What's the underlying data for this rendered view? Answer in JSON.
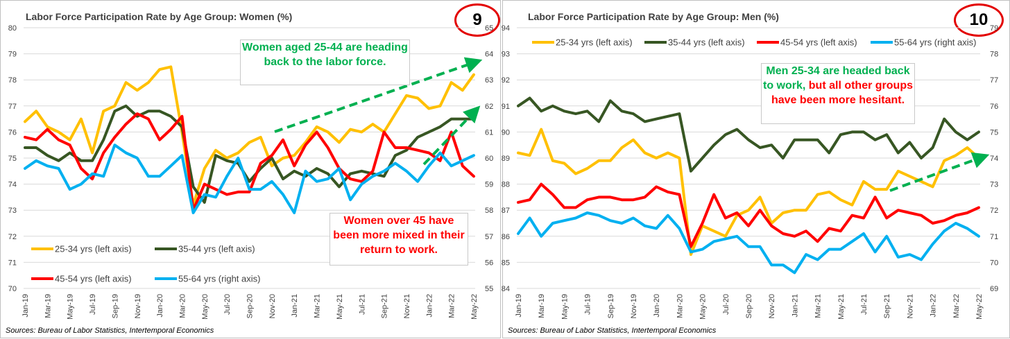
{
  "colors": {
    "yellow": "#ffc000",
    "darkgreen": "#375623",
    "red": "#ff0000",
    "blue": "#00b0f0",
    "green_text": "#00b050",
    "red_text": "#ff0000",
    "arrow": "#00b050"
  },
  "left": {
    "title": "Labor Force Participation Rate by Age Group: Women (%)",
    "badge": "9",
    "source": "Sources: Bureau of Labor Statistics, Intertemporal Economics",
    "annot_top": "Women aged 25-44 are heading back to the labor force.",
    "annot_bottom": "Women over 45 have been more mixed in their return to work."
  },
  "right": {
    "title": "Labor Force Participation Rate by Age Group: Men (%)",
    "badge": "10",
    "source": "Sources: Bureau of Labor Statistics, Intertemporal Economics",
    "annot_green": "Men 25-34 are headed back to work,",
    "annot_red": " but all other groups have been more hesitant."
  },
  "chart_data": [
    {
      "type": "line",
      "title": "Labor Force Participation Rate by Age Group: Women (%)",
      "x": [
        "Jan-19",
        "Feb-19",
        "Mar-19",
        "Apr-19",
        "May-19",
        "Jun-19",
        "Jul-19",
        "Aug-19",
        "Sep-19",
        "Oct-19",
        "Nov-19",
        "Dec-19",
        "Jan-20",
        "Feb-20",
        "Mar-20",
        "Apr-20",
        "May-20",
        "Jun-20",
        "Jul-20",
        "Aug-20",
        "Sep-20",
        "Oct-20",
        "Nov-20",
        "Dec-20",
        "Jan-21",
        "Feb-21",
        "Mar-21",
        "Apr-21",
        "May-21",
        "Jun-21",
        "Jul-21",
        "Aug-21",
        "Sep-21",
        "Oct-21",
        "Nov-21",
        "Dec-21",
        "Jan-22",
        "Feb-22",
        "Mar-22",
        "Apr-22",
        "May-22"
      ],
      "x_tick_labels": [
        "Jan-19",
        "Mar-19",
        "May-19",
        "Jul-19",
        "Sep-19",
        "Nov-19",
        "Jan-20",
        "Mar-20",
        "May-20",
        "Jul-20",
        "Sep-20",
        "Nov-20",
        "Jan-21",
        "Mar-21",
        "May-21",
        "Jul-21",
        "Sep-21",
        "Nov-21",
        "Jan-22",
        "Mar-22",
        "May-22"
      ],
      "ylim_left": [
        70,
        80
      ],
      "ylim_right": [
        55,
        65
      ],
      "legend_placement": "bottom-left",
      "series": [
        {
          "name": "25-34 yrs (left axis)",
          "axis": "left",
          "color": "#ffc000",
          "values": [
            76.4,
            76.8,
            76.2,
            76.0,
            75.7,
            76.5,
            75.2,
            76.8,
            77.0,
            77.9,
            77.6,
            77.9,
            78.4,
            78.5,
            76.0,
            73.2,
            74.6,
            75.3,
            75.0,
            75.2,
            75.6,
            75.8,
            74.7,
            75.0,
            75.1,
            75.6,
            76.2,
            76.0,
            75.6,
            76.1,
            76.0,
            76.3,
            76.0,
            76.7,
            77.4,
            77.3,
            76.9,
            77.0,
            77.9,
            77.6,
            78.2
          ]
        },
        {
          "name": "35-44 yrs (left axis)",
          "axis": "left",
          "color": "#375623",
          "values": [
            75.4,
            75.4,
            75.1,
            74.9,
            75.2,
            74.9,
            74.9,
            75.7,
            76.8,
            77.0,
            76.6,
            76.8,
            76.8,
            76.6,
            76.2,
            73.9,
            73.3,
            75.1,
            74.9,
            74.8,
            74.1,
            74.6,
            75.0,
            74.2,
            74.5,
            74.3,
            74.6,
            74.4,
            73.9,
            74.4,
            74.5,
            74.4,
            74.3,
            75.1,
            75.3,
            75.8,
            76.0,
            76.2,
            76.5,
            76.5,
            76.5
          ]
        },
        {
          "name": "45-54 yrs (left axis)",
          "axis": "left",
          "color": "#ff0000",
          "values": [
            75.8,
            75.7,
            76.1,
            75.7,
            75.5,
            74.6,
            74.2,
            75.2,
            75.8,
            76.3,
            76.7,
            76.5,
            75.7,
            76.1,
            76.6,
            73.0,
            74.0,
            73.8,
            73.6,
            73.7,
            73.7,
            74.8,
            75.1,
            75.7,
            74.7,
            75.5,
            76.0,
            75.4,
            74.6,
            74.2,
            74.1,
            74.5,
            76.0,
            75.4,
            75.4,
            75.3,
            75.2,
            74.9,
            76.0,
            74.7,
            74.3
          ]
        },
        {
          "name": "55-64 yrs (right axis)",
          "axis": "right",
          "color": "#00b0f0",
          "values": [
            59.6,
            59.9,
            59.7,
            59.6,
            58.8,
            59.0,
            59.4,
            59.3,
            60.5,
            60.2,
            60.0,
            59.3,
            59.3,
            59.7,
            60.1,
            57.9,
            58.6,
            58.5,
            59.3,
            60.0,
            58.8,
            58.8,
            59.1,
            58.6,
            57.9,
            59.5,
            59.1,
            59.2,
            59.6,
            58.4,
            59.0,
            59.3,
            59.5,
            59.8,
            59.5,
            59.1,
            59.7,
            60.2,
            59.7,
            59.9,
            60.1
          ]
        }
      ]
    },
    {
      "type": "line",
      "title": "Labor Force Participation Rate by Age Group: Men (%)",
      "x": [
        "Jan-19",
        "Feb-19",
        "Mar-19",
        "Apr-19",
        "May-19",
        "Jun-19",
        "Jul-19",
        "Aug-19",
        "Sep-19",
        "Oct-19",
        "Nov-19",
        "Dec-19",
        "Jan-20",
        "Feb-20",
        "Mar-20",
        "Apr-20",
        "May-20",
        "Jun-20",
        "Jul-20",
        "Aug-20",
        "Sep-20",
        "Oct-20",
        "Nov-20",
        "Dec-20",
        "Jan-21",
        "Feb-21",
        "Mar-21",
        "Apr-21",
        "May-21",
        "Jun-21",
        "Jul-21",
        "Aug-21",
        "Sep-21",
        "Oct-21",
        "Nov-21",
        "Dec-21",
        "Jan-22",
        "Feb-22",
        "Mar-22",
        "Apr-22",
        "May-22"
      ],
      "x_tick_labels": [
        "Jan-19",
        "Mar-19",
        "May-19",
        "Jul-19",
        "Sep-19",
        "Nov-19",
        "Jan-20",
        "Mar-20",
        "May-20",
        "Jul-20",
        "Sep-20",
        "Nov-20",
        "Jan-21",
        "Mar-21",
        "May-21",
        "Jul-21",
        "Sep-21",
        "Nov-21",
        "Jan-22",
        "Mar-22",
        "May-22"
      ],
      "ylim_left": [
        84,
        94
      ],
      "ylim_right": [
        69,
        79
      ],
      "legend_placement": "top",
      "series": [
        {
          "name": "25-34 yrs (left axis)",
          "axis": "left",
          "color": "#ffc000",
          "values": [
            89.2,
            89.1,
            90.1,
            88.9,
            88.8,
            88.4,
            88.6,
            88.9,
            88.9,
            89.4,
            89.7,
            89.2,
            89.0,
            89.2,
            89.0,
            85.3,
            86.4,
            86.2,
            86.0,
            86.8,
            87.0,
            87.5,
            86.5,
            86.9,
            87.0,
            87.0,
            87.6,
            87.7,
            87.4,
            87.2,
            88.1,
            87.8,
            87.8,
            88.5,
            88.3,
            88.1,
            87.9,
            88.9,
            89.1,
            89.4,
            89.0
          ]
        },
        {
          "name": "35-44 yrs (left axis)",
          "axis": "left",
          "color": "#375623",
          "values": [
            91.0,
            91.3,
            90.8,
            91.0,
            90.8,
            90.7,
            90.8,
            90.4,
            91.2,
            90.8,
            90.7,
            90.4,
            90.5,
            90.6,
            90.7,
            88.5,
            89.0,
            89.5,
            89.9,
            90.1,
            89.7,
            89.4,
            89.5,
            89.0,
            89.7,
            89.7,
            89.7,
            89.2,
            89.9,
            90.0,
            90.0,
            89.7,
            89.9,
            89.2,
            89.6,
            89.0,
            89.4,
            90.5,
            90.0,
            89.7,
            90.0
          ]
        },
        {
          "name": "45-54 yrs (left axis)",
          "axis": "left",
          "color": "#ff0000",
          "values": [
            87.3,
            87.4,
            88.0,
            87.6,
            87.1,
            87.1,
            87.4,
            87.5,
            87.5,
            87.4,
            87.4,
            87.5,
            87.9,
            87.7,
            87.6,
            85.6,
            86.5,
            87.6,
            86.7,
            86.9,
            86.4,
            87.0,
            86.4,
            86.1,
            86.0,
            86.2,
            85.8,
            86.3,
            86.2,
            86.8,
            86.7,
            87.5,
            86.7,
            87.0,
            86.9,
            86.8,
            86.5,
            86.6,
            86.8,
            86.9,
            87.1
          ]
        },
        {
          "name": "55-64 yrs (right axis)",
          "axis": "right",
          "color": "#00b0f0",
          "values": [
            71.1,
            71.7,
            71.0,
            71.5,
            71.6,
            71.7,
            71.9,
            71.8,
            71.6,
            71.5,
            71.7,
            71.4,
            71.3,
            71.8,
            71.3,
            70.4,
            70.5,
            70.8,
            70.9,
            71.0,
            70.6,
            70.6,
            69.9,
            69.9,
            69.6,
            70.3,
            70.1,
            70.5,
            70.5,
            70.8,
            71.1,
            70.4,
            71.0,
            70.2,
            70.3,
            70.1,
            70.7,
            71.2,
            71.5,
            71.3,
            71.0
          ]
        }
      ]
    }
  ]
}
